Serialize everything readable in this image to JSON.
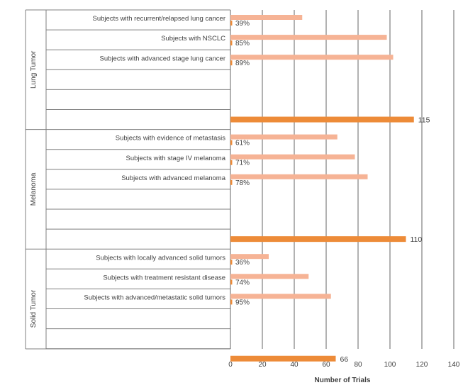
{
  "chart_data": {
    "type": "bar",
    "orientation": "horizontal",
    "title": "",
    "xlabel": "Number of Trials",
    "ylabel": "",
    "xlim": [
      0,
      140
    ],
    "xticks": [
      0,
      20,
      40,
      60,
      80,
      100,
      120,
      140
    ],
    "grid": "vertical",
    "colors": {
      "total": "#ED8B38",
      "subgroup": "#F6B395",
      "grid": "#7F7F7F",
      "text": "#404040"
    },
    "groups": [
      {
        "name": "Lung Tumor",
        "total": 115,
        "subgroups": [
          {
            "label": "Subjects with recurrent/relapsed lung cancer",
            "value": 45,
            "pct": "39%"
          },
          {
            "label": "Subjects with NSCLC",
            "value": 98,
            "pct": "85%"
          },
          {
            "label": "Subjects with advanced stage lung cancer",
            "value": 102,
            "pct": "89%"
          }
        ]
      },
      {
        "name": "Melanoma",
        "total": 110,
        "subgroups": [
          {
            "label": "Subjects with evidence of metastasis",
            "value": 67,
            "pct": "61%"
          },
          {
            "label": "Subjects with stage IV melanoma",
            "value": 78,
            "pct": "71%"
          },
          {
            "label": "Subjects with advanced melanoma",
            "value": 86,
            "pct": "78%"
          }
        ]
      },
      {
        "name": "Solid Tumor",
        "total": 66,
        "subgroups": [
          {
            "label": "Subjects with locally advanced solid tumors",
            "value": 24,
            "pct": "36%"
          },
          {
            "label": "Subjects with treatment resistant disease",
            "value": 49,
            "pct": "74%"
          },
          {
            "label": "Subjects with advanced/metastatic solid tumors",
            "value": 63,
            "pct": "95%"
          }
        ]
      }
    ]
  }
}
